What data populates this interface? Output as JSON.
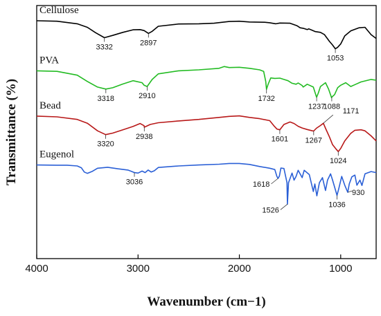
{
  "chart_data": {
    "type": "line",
    "title": "",
    "xlabel": "Wavenumber (cm−1)",
    "ylabel": "Transmittance (%)",
    "xlim": [
      4000,
      650
    ],
    "x_reversed": true,
    "xticks": [
      4000,
      3000,
      2000,
      1000
    ],
    "ylim": [
      0,
      100
    ],
    "grid": false,
    "legend": "none",
    "series": [
      {
        "name": "Cellulose",
        "color": "#000000",
        "points": [
          [
            4000,
            94.0
          ],
          [
            3800,
            93.8
          ],
          [
            3600,
            92.8
          ],
          [
            3500,
            91.4
          ],
          [
            3420,
            89.3
          ],
          [
            3332,
            87.3
          ],
          [
            3250,
            88.2
          ],
          [
            3150,
            89.4
          ],
          [
            3050,
            90.4
          ],
          [
            2980,
            90.5
          ],
          [
            2940,
            90.1
          ],
          [
            2897,
            89.0
          ],
          [
            2860,
            89.8
          ],
          [
            2800,
            91.8
          ],
          [
            2600,
            92.7
          ],
          [
            2400,
            92.8
          ],
          [
            2250,
            93.0
          ],
          [
            2100,
            93.7
          ],
          [
            2000,
            93.8
          ],
          [
            1900,
            93.5
          ],
          [
            1750,
            93.4
          ],
          [
            1700,
            93.2
          ],
          [
            1640,
            92.8
          ],
          [
            1600,
            93.1
          ],
          [
            1500,
            93.0
          ],
          [
            1430,
            92.0
          ],
          [
            1400,
            91.2
          ],
          [
            1370,
            91.0
          ],
          [
            1330,
            90.5
          ],
          [
            1315,
            90.8
          ],
          [
            1280,
            90.2
          ],
          [
            1250,
            89.7
          ],
          [
            1200,
            89.4
          ],
          [
            1160,
            88.5
          ],
          [
            1110,
            85.8
          ],
          [
            1080,
            84.4
          ],
          [
            1053,
            82.9
          ],
          [
            1030,
            83.5
          ],
          [
            1000,
            84.8
          ],
          [
            960,
            88.0
          ],
          [
            900,
            90.0
          ],
          [
            820,
            91.2
          ],
          [
            760,
            91.4
          ],
          [
            700,
            88.5
          ],
          [
            650,
            87.0
          ]
        ]
      },
      {
        "name": "PVA",
        "color": "#22bb22",
        "points": [
          [
            4000,
            74.2
          ],
          [
            3800,
            74.0
          ],
          [
            3600,
            72.5
          ],
          [
            3500,
            70.0
          ],
          [
            3400,
            67.8
          ],
          [
            3318,
            67.0
          ],
          [
            3250,
            67.5
          ],
          [
            3150,
            69.0
          ],
          [
            3050,
            70.3
          ],
          [
            2960,
            69.5
          ],
          [
            2940,
            68.5
          ],
          [
            2910,
            68.0
          ],
          [
            2860,
            70.8
          ],
          [
            2800,
            73.0
          ],
          [
            2600,
            74.2
          ],
          [
            2400,
            74.6
          ],
          [
            2200,
            75.2
          ],
          [
            2150,
            75.9
          ],
          [
            2100,
            75.5
          ],
          [
            2000,
            75.6
          ],
          [
            1900,
            75.2
          ],
          [
            1800,
            74.6
          ],
          [
            1760,
            74.0
          ],
          [
            1740,
            70.0
          ],
          [
            1732,
            66.9
          ],
          [
            1715,
            69.0
          ],
          [
            1690,
            71.4
          ],
          [
            1650,
            71.2
          ],
          [
            1600,
            71.3
          ],
          [
            1560,
            70.8
          ],
          [
            1520,
            70.3
          ],
          [
            1480,
            69.3
          ],
          [
            1440,
            68.9
          ],
          [
            1420,
            69.4
          ],
          [
            1380,
            68.4
          ],
          [
            1370,
            67.8
          ],
          [
            1330,
            68.9
          ],
          [
            1270,
            67.8
          ],
          [
            1240,
            64.0
          ],
          [
            1237,
            63.8
          ],
          [
            1220,
            65.5
          ],
          [
            1200,
            68.0
          ],
          [
            1150,
            69.5
          ],
          [
            1120,
            67.0
          ],
          [
            1090,
            63.6
          ],
          [
            1088,
            63.8
          ],
          [
            1060,
            64.8
          ],
          [
            1030,
            67.5
          ],
          [
            1000,
            68.5
          ],
          [
            950,
            69.5
          ],
          [
            900,
            68.0
          ],
          [
            850,
            68.9
          ],
          [
            800,
            69.8
          ],
          [
            700,
            70.8
          ],
          [
            650,
            70.5
          ]
        ]
      },
      {
        "name": "Bead",
        "color": "#b81818",
        "points": [
          [
            4000,
            56.3
          ],
          [
            3800,
            56.0
          ],
          [
            3600,
            55.0
          ],
          [
            3500,
            53.5
          ],
          [
            3400,
            50.5
          ],
          [
            3320,
            49.0
          ],
          [
            3250,
            49.6
          ],
          [
            3150,
            50.9
          ],
          [
            3050,
            52.2
          ],
          [
            2980,
            53.4
          ],
          [
            2940,
            52.5
          ],
          [
            2938,
            51.9
          ],
          [
            2880,
            53.0
          ],
          [
            2800,
            53.7
          ],
          [
            2600,
            54.4
          ],
          [
            2400,
            55.0
          ],
          [
            2200,
            55.8
          ],
          [
            2100,
            56.2
          ],
          [
            2000,
            56.4
          ],
          [
            1900,
            55.8
          ],
          [
            1800,
            55.3
          ],
          [
            1700,
            54.5
          ],
          [
            1660,
            52.5
          ],
          [
            1630,
            51.2
          ],
          [
            1601,
            50.9
          ],
          [
            1560,
            53.0
          ],
          [
            1500,
            54.0
          ],
          [
            1460,
            53.4
          ],
          [
            1420,
            52.3
          ],
          [
            1380,
            51.6
          ],
          [
            1330,
            51.0
          ],
          [
            1280,
            50.5
          ],
          [
            1267,
            50.4
          ],
          [
            1240,
            51.5
          ],
          [
            1200,
            52.6
          ],
          [
            1171,
            53.5
          ],
          [
            1150,
            51.5
          ],
          [
            1110,
            48.0
          ],
          [
            1080,
            45.0
          ],
          [
            1050,
            43.5
          ],
          [
            1024,
            42.3
          ],
          [
            1000,
            43.5
          ],
          [
            960,
            46.5
          ],
          [
            900,
            49.5
          ],
          [
            860,
            50.7
          ],
          [
            800,
            50.9
          ],
          [
            760,
            50.5
          ],
          [
            700,
            48.5
          ],
          [
            650,
            46.5
          ]
        ]
      },
      {
        "name": "Eugenol",
        "color": "#2a5fd6",
        "points": [
          [
            4000,
            37.0
          ],
          [
            3800,
            36.9
          ],
          [
            3700,
            36.9
          ],
          [
            3600,
            36.6
          ],
          [
            3560,
            35.9
          ],
          [
            3530,
            34.2
          ],
          [
            3500,
            33.7
          ],
          [
            3450,
            34.5
          ],
          [
            3400,
            35.7
          ],
          [
            3300,
            36.1
          ],
          [
            3200,
            35.5
          ],
          [
            3100,
            35.0
          ],
          [
            3060,
            34.4
          ],
          [
            3036,
            34.0
          ],
          [
            3000,
            33.8
          ],
          [
            2960,
            34.6
          ],
          [
            2930,
            34.0
          ],
          [
            2900,
            35.0
          ],
          [
            2870,
            34.2
          ],
          [
            2840,
            34.7
          ],
          [
            2800,
            36.0
          ],
          [
            2600,
            36.6
          ],
          [
            2400,
            37.0
          ],
          [
            2200,
            37.3
          ],
          [
            2100,
            37.6
          ],
          [
            2000,
            37.6
          ],
          [
            1900,
            37.2
          ],
          [
            1800,
            36.4
          ],
          [
            1700,
            35.7
          ],
          [
            1650,
            35.2
          ],
          [
            1630,
            32.5
          ],
          [
            1618,
            31.7
          ],
          [
            1605,
            32.6
          ],
          [
            1590,
            35.8
          ],
          [
            1560,
            35.6
          ],
          [
            1530,
            30.0
          ],
          [
            1526,
            21.5
          ],
          [
            1515,
            30.0
          ],
          [
            1480,
            33.8
          ],
          [
            1460,
            31.0
          ],
          [
            1440,
            32.5
          ],
          [
            1420,
            34.9
          ],
          [
            1380,
            32.0
          ],
          [
            1360,
            34.9
          ],
          [
            1310,
            33.2
          ],
          [
            1270,
            26.5
          ],
          [
            1255,
            29.5
          ],
          [
            1235,
            24.8
          ],
          [
            1210,
            30.0
          ],
          [
            1180,
            32.0
          ],
          [
            1150,
            26.9
          ],
          [
            1130,
            31.0
          ],
          [
            1100,
            33.5
          ],
          [
            1080,
            31.0
          ],
          [
            1036,
            25.0
          ],
          [
            1020,
            27.5
          ],
          [
            990,
            32.5
          ],
          [
            960,
            29.0
          ],
          [
            930,
            26.2
          ],
          [
            915,
            29.5
          ],
          [
            890,
            32.3
          ],
          [
            860,
            33.0
          ],
          [
            840,
            29.0
          ],
          [
            810,
            31.0
          ],
          [
            790,
            28.9
          ],
          [
            760,
            33.5
          ],
          [
            700,
            34.4
          ],
          [
            650,
            34.0
          ]
        ]
      }
    ],
    "annotations": [
      {
        "series": "Cellulose",
        "x": 3332,
        "text": "3332",
        "pos": "below"
      },
      {
        "series": "Cellulose",
        "x": 2897,
        "text": "2897",
        "pos": "below"
      },
      {
        "series": "Cellulose",
        "x": 1053,
        "text": "1053",
        "pos": "below"
      },
      {
        "series": "PVA",
        "x": 3318,
        "text": "3318",
        "pos": "below"
      },
      {
        "series": "PVA",
        "x": 2910,
        "text": "2910",
        "pos": "below"
      },
      {
        "series": "PVA",
        "x": 1732,
        "text": "1732",
        "pos": "below"
      },
      {
        "series": "PVA",
        "x": 1237,
        "text": "1237",
        "pos": "below"
      },
      {
        "series": "PVA",
        "x": 1088,
        "text": "1088",
        "pos": "below"
      },
      {
        "series": "Bead",
        "x": 3320,
        "text": "3320",
        "pos": "below"
      },
      {
        "series": "Bead",
        "x": 2938,
        "text": "2938",
        "pos": "below"
      },
      {
        "series": "Bead",
        "x": 1601,
        "text": "1601",
        "pos": "below"
      },
      {
        "series": "Bead",
        "x": 1267,
        "text": "1267",
        "pos": "below"
      },
      {
        "series": "Bead",
        "x": 1171,
        "text": "1171",
        "pos": "above"
      },
      {
        "series": "Bead",
        "x": 1024,
        "text": "1024",
        "pos": "below"
      },
      {
        "series": "Eugenol",
        "x": 3036,
        "text": "3036",
        "pos": "below"
      },
      {
        "series": "Eugenol",
        "x": 1618,
        "text": "1618",
        "pos": "left"
      },
      {
        "series": "Eugenol",
        "x": 1526,
        "text": "1526",
        "pos": "left"
      },
      {
        "series": "Eugenol",
        "x": 1036,
        "text": "1036",
        "pos": "below"
      },
      {
        "series": "Eugenol",
        "x": 930,
        "text": "930",
        "pos": "right"
      }
    ]
  }
}
